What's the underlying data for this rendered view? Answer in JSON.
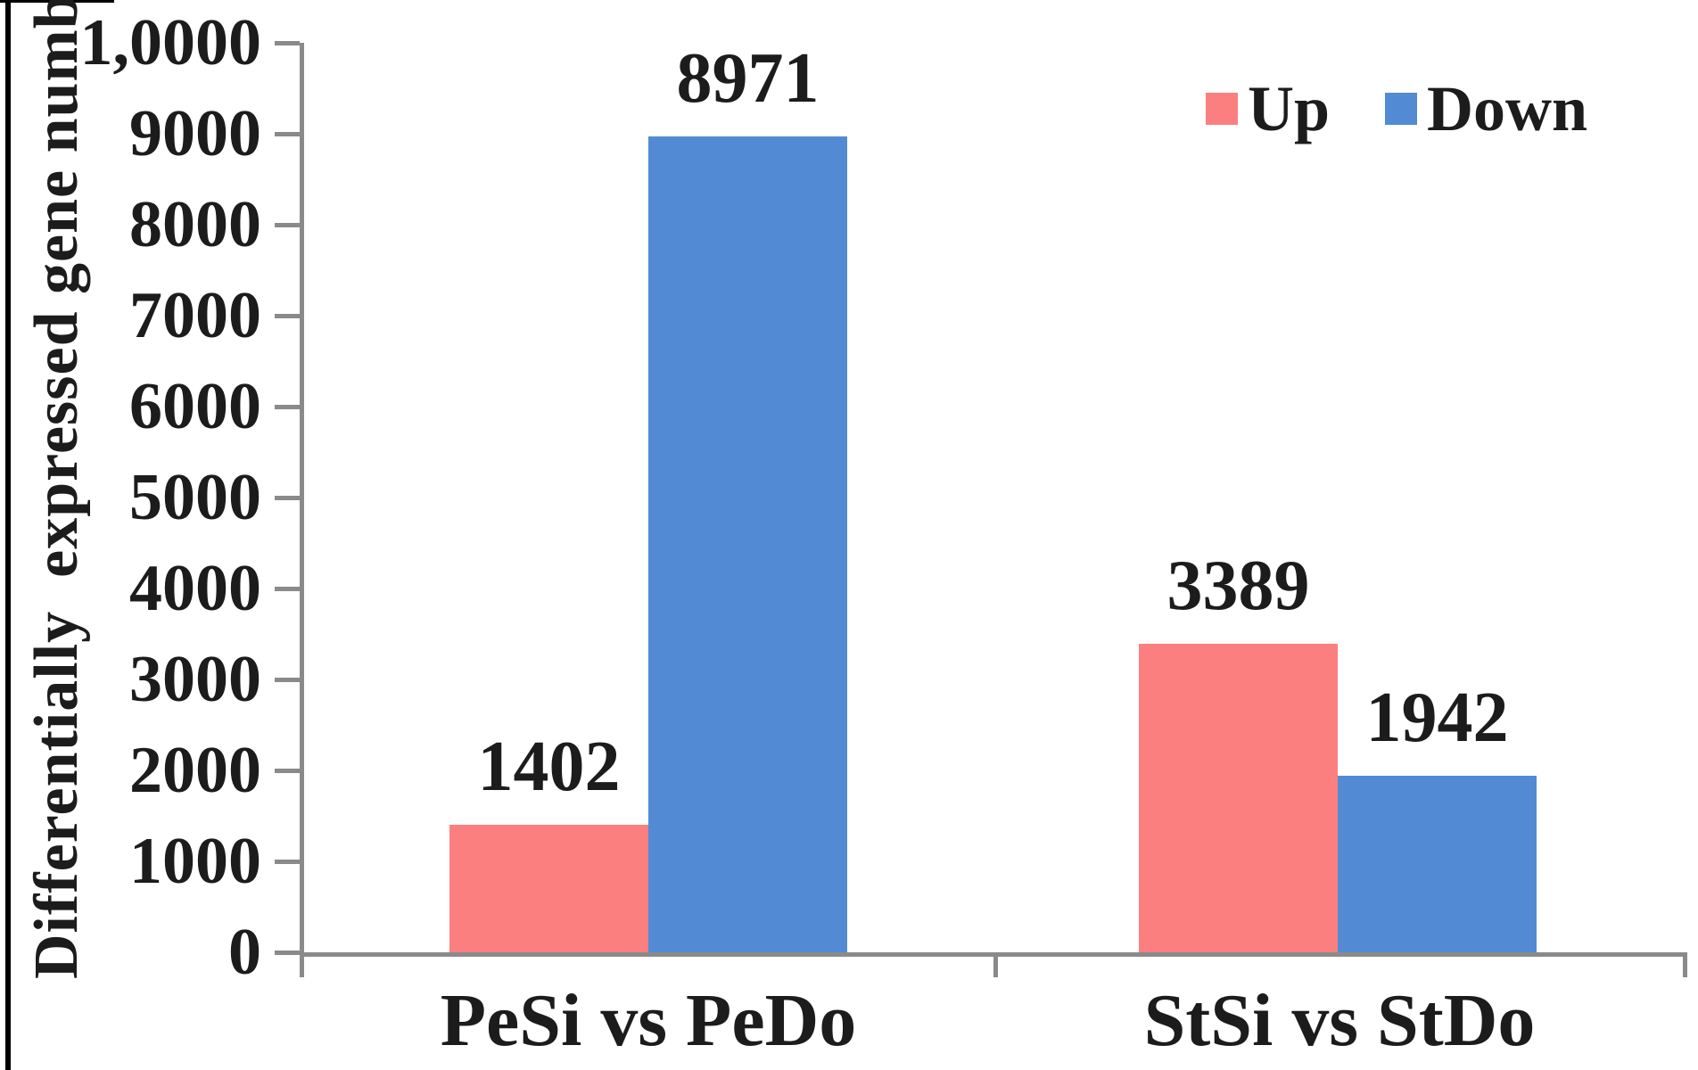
{
  "chart_data": {
    "type": "bar",
    "categories": [
      "PeSi vs PeDo",
      "StSi vs StDo"
    ],
    "series": [
      {
        "name": "Up",
        "color": "#fc7f7f",
        "values": [
          1402,
          3389
        ]
      },
      {
        "name": "Down",
        "color": "#528bd3",
        "values": [
          8971,
          1942
        ]
      }
    ],
    "value_labels": [
      [
        "1402",
        "8971"
      ],
      [
        "3389",
        "1942"
      ]
    ],
    "ylabel": "Differentially  expressed gene number",
    "xlabel": "",
    "title": "",
    "ylim": [
      0,
      10000
    ],
    "y_tick_step": 1000,
    "y_tick_labels": [
      "1,0000",
      "9000",
      "8000",
      "7000",
      "6000",
      "5000",
      "4000",
      "3000",
      "2000",
      "1000",
      "0"
    ],
    "grid": false,
    "legend_position": "top-right",
    "legend": [
      {
        "label": "Up",
        "color": "#fc7f7f"
      },
      {
        "label": "Down",
        "color": "#528bd3"
      }
    ]
  },
  "colors": {
    "up": "#fc7f7f",
    "down": "#528bd3",
    "axis": "#8a8a8a",
    "text": "#1c1c1c",
    "figure_border": "#000000"
  }
}
